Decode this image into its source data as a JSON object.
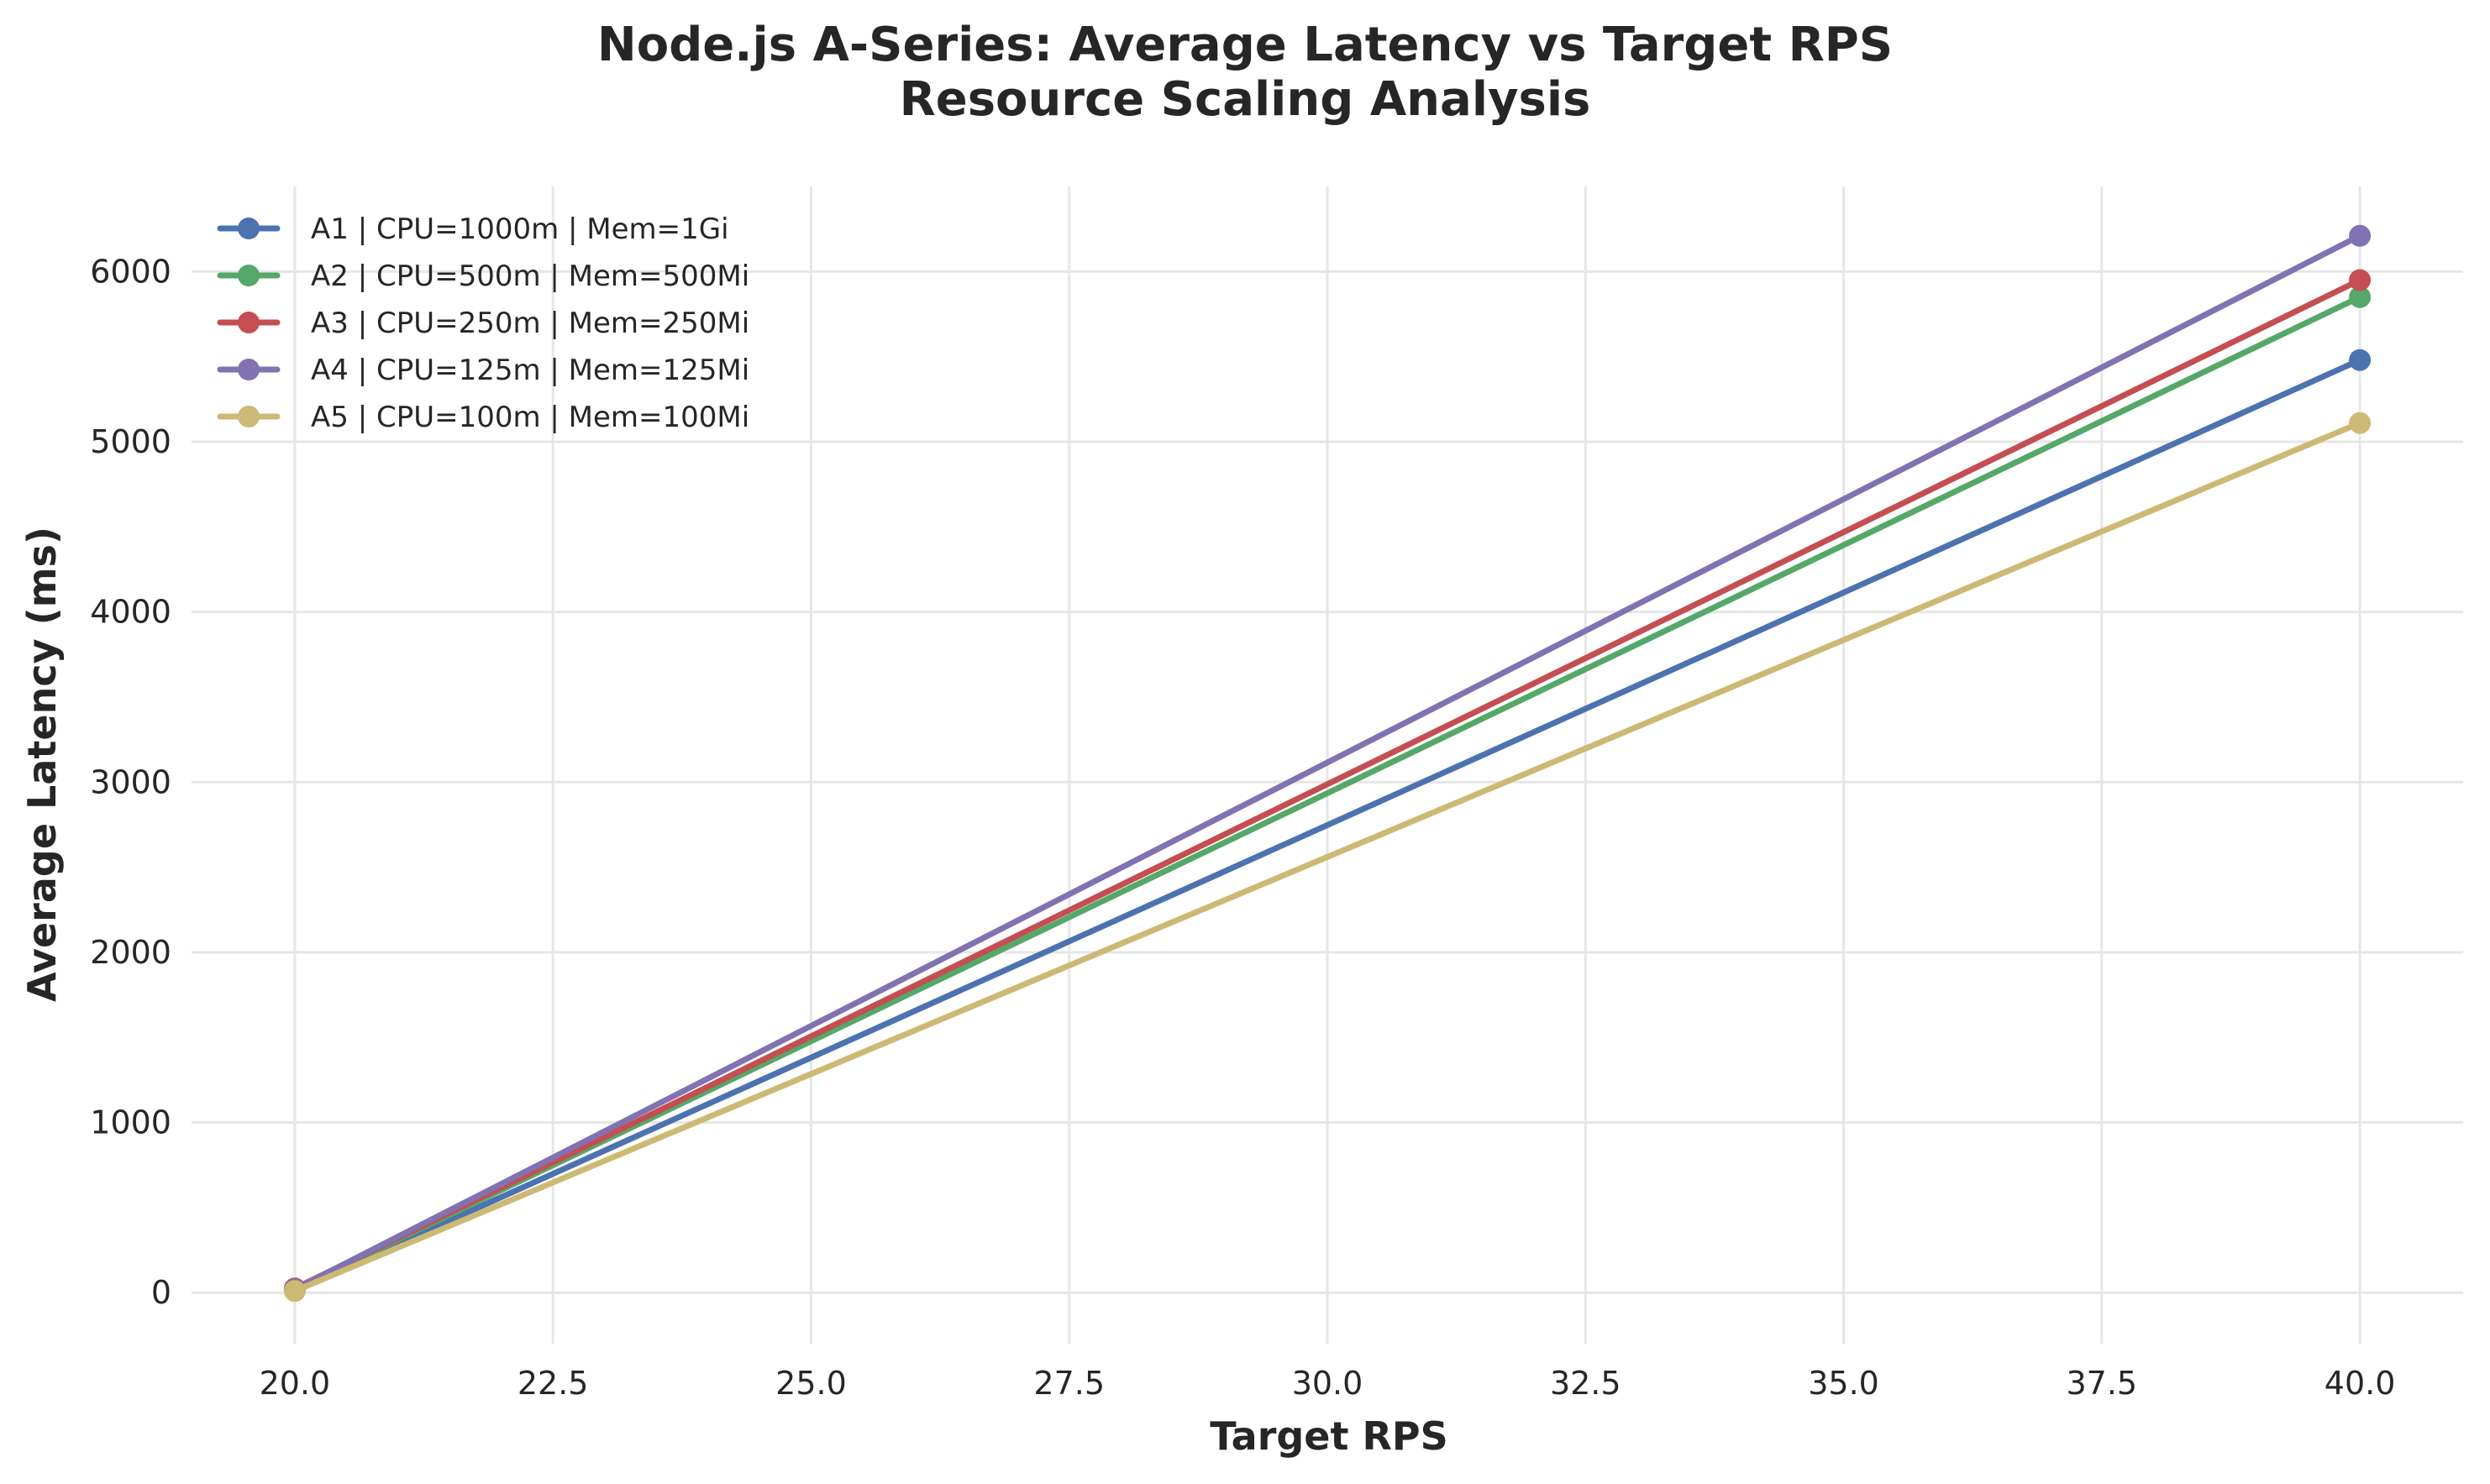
{
  "chart_data": {
    "type": "line",
    "title": "Node.js A-Series: Average Latency vs Target RPS",
    "subtitle": "Resource Scaling Analysis",
    "xlabel": "Target RPS",
    "ylabel": "Average Latency (ms)",
    "xlim": [
      19,
      41
    ],
    "ylim": [
      -300,
      6500
    ],
    "x_ticks": [
      20.0,
      22.5,
      25.0,
      27.5,
      30.0,
      32.5,
      35.0,
      37.5,
      40.0
    ],
    "x_tick_labels": [
      "20.0",
      "22.5",
      "25.0",
      "27.5",
      "30.0",
      "32.5",
      "35.0",
      "37.5",
      "40.0"
    ],
    "y_ticks": [
      0,
      1000,
      2000,
      3000,
      4000,
      5000,
      6000
    ],
    "y_tick_labels": [
      "0",
      "1000",
      "2000",
      "3000",
      "4000",
      "5000",
      "6000"
    ],
    "grid": true,
    "legend_position": "top-left",
    "x": [
      20,
      40
    ],
    "series": [
      {
        "name": "A1 | CPU=1000m | Mem=1Gi",
        "color": "#4c72b0",
        "values": [
          15,
          5480
        ]
      },
      {
        "name": "A2 | CPU=500m | Mem=500Mi",
        "color": "#55a868",
        "values": [
          20,
          5850
        ]
      },
      {
        "name": "A3 | CPU=250m | Mem=250Mi",
        "color": "#c44e52",
        "values": [
          25,
          5950
        ]
      },
      {
        "name": "A4 | CPU=125m | Mem=125Mi",
        "color": "#8172b2",
        "values": [
          20,
          6210
        ]
      },
      {
        "name": "A5 | CPU=100m | Mem=100Mi",
        "color": "#ccb974",
        "values": [
          10,
          5110
        ]
      }
    ]
  }
}
